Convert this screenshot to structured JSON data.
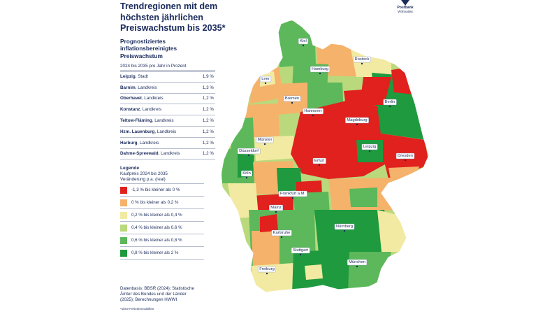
{
  "header": {
    "title_lines": [
      "Trendregionen mit dem",
      "höchsten jährlichen",
      "Preiswachstum bis 2035*"
    ]
  },
  "logo": {
    "name": "Postbank",
    "sub": "Wohnatlas"
  },
  "ranking": {
    "title_lines": [
      "Prognostiziertes",
      "inflationsbereinigtes",
      "Preiswachstum"
    ],
    "unit_note": "2024 bis 2035 pro Jahr in Prozent",
    "rows": [
      {
        "name": "Leipzig",
        "type": ", Stadt",
        "value": "1,9 %"
      },
      {
        "name": "Barnim",
        "type": ", Landkreis",
        "value": "1,3 %"
      },
      {
        "name": "Oberhavel",
        "type": ", Landkreis",
        "value": "1,2 %"
      },
      {
        "name": "Konstanz",
        "type": ", Landkreis",
        "value": "1,2 %"
      },
      {
        "name": "Teltow-Fläming",
        "type": ", Landkreis",
        "value": "1,2 %"
      },
      {
        "name": "Hzm. Lauenburg",
        "type": ", Landkreis",
        "value": "1,2 %"
      },
      {
        "name": "Harburg",
        "type": ", Landkreis",
        "value": "1,2 %"
      },
      {
        "name": "Dahme-Spreewald",
        "type": ", Landkreis",
        "value": "1,2 %"
      }
    ]
  },
  "legend": {
    "title": "Legende",
    "sub_lines": [
      "Kaufpreis 2024 bis 2035",
      "Veränderung p.a. (real)"
    ],
    "items": [
      {
        "label": "-1,3 % bis kleiner als 0 %",
        "color": "#e0211d"
      },
      {
        "label": "0 % bis kleiner als 0,2 %",
        "color": "#f5b26b"
      },
      {
        "label": "0,2 % bis kleiner als 0,4 %",
        "color": "#f2eaa2"
      },
      {
        "label": "0,4 % bis kleiner als 0,6 %",
        "color": "#b9d97c"
      },
      {
        "label": "0,6 % bis kleiner als 0,8 %",
        "color": "#5cb85a"
      },
      {
        "label": "0,8 % bis kleiner als 2 %",
        "color": "#1f9a3e"
      }
    ]
  },
  "source_lines": [
    "Datenbasis: BBSR (2024); Statistische",
    "Ämter des Bundes und der Länder",
    "(2025); Berechnungen HWWI"
  ],
  "footnote": "*ohne Ferienimmobilien",
  "cities": [
    {
      "name": "Kiel",
      "color_class": 4
    },
    {
      "name": "Rostock",
      "color_class": 3
    },
    {
      "name": "Hamburg",
      "color_class": 4
    },
    {
      "name": "Leer",
      "color_class": 1
    },
    {
      "name": "Bremen",
      "color_class": 2
    },
    {
      "name": "Berlin",
      "color_class": 5
    },
    {
      "name": "Hannover",
      "color_class": 3
    },
    {
      "name": "Magdeburg",
      "color_class": 0
    },
    {
      "name": "Münster",
      "color_class": 2
    },
    {
      "name": "Düsseldorf",
      "color_class": 1
    },
    {
      "name": "Leipzig",
      "color_class": 5
    },
    {
      "name": "Dresden",
      "color_class": 0
    },
    {
      "name": "Köln",
      "color_class": 3
    },
    {
      "name": "Erfurt",
      "color_class": 0
    },
    {
      "name": "Frankfurt a.M.",
      "color_class": 4
    },
    {
      "name": "Mainz",
      "color_class": 0
    },
    {
      "name": "Karlsruhe",
      "color_class": 4
    },
    {
      "name": "Nürnberg",
      "color_class": 5
    },
    {
      "name": "Stuttgart",
      "color_class": 5
    },
    {
      "name": "München",
      "color_class": 5
    },
    {
      "name": "Freiburg",
      "color_class": 4
    }
  ]
}
